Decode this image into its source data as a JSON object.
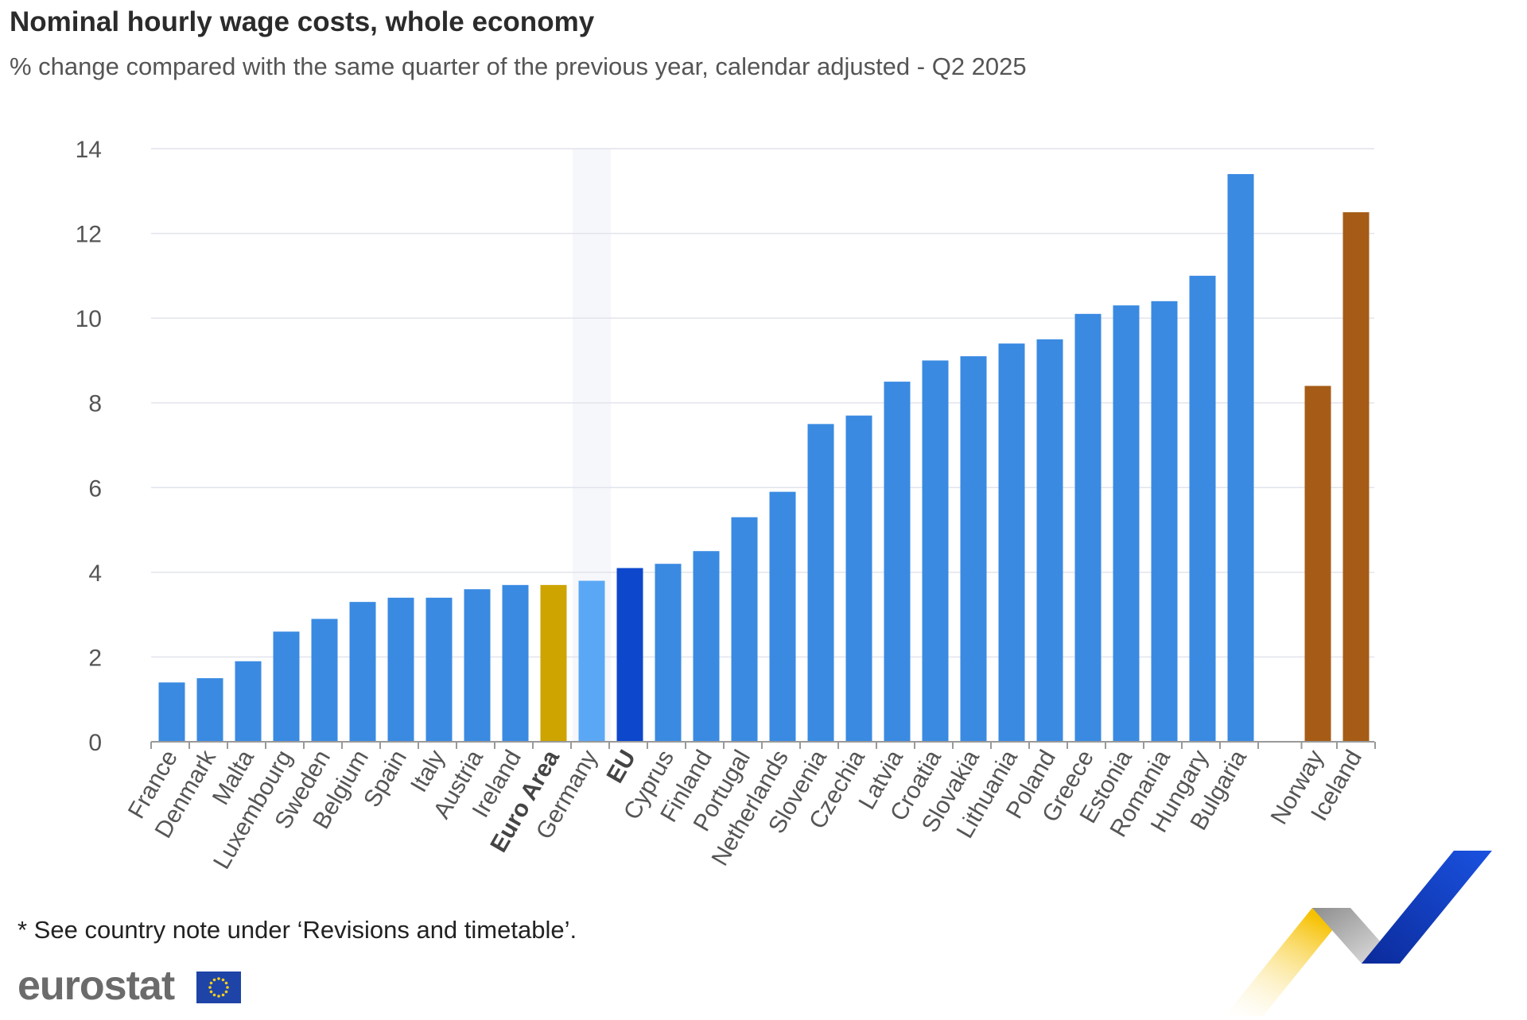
{
  "title": "Nominal hourly wage costs, whole economy",
  "subtitle": "% change compared with the same quarter of the previous year, calendar adjusted - Q2 2025",
  "footnote": "* See country note under ‘Revisions and timetable’.",
  "logo_text": "eurostat",
  "colors": {
    "country": "#3a8ae2",
    "euro_area": "#cda400",
    "germany": "#5aa8f5",
    "eu": "#0d47cc",
    "non_eu": "#a65c16",
    "grid": "#e2e4ec",
    "highlight_band": "#f6f7fb"
  },
  "chart_data": {
    "type": "bar",
    "ylim": [
      0,
      14
    ],
    "yticks": [
      0,
      2,
      4,
      6,
      8,
      10,
      12,
      14
    ],
    "grid": true,
    "categories": [
      "France",
      "Denmark",
      "Malta",
      "Luxembourg",
      "Sweden",
      "Belgium",
      "Spain",
      "Italy",
      "Austria",
      "Ireland",
      "Euro Area",
      "Germany",
      "EU",
      "Cyprus",
      "Finland",
      "Portugal",
      "Netherlands",
      "Slovenia",
      "Czechia",
      "Latvia",
      "Croatia",
      "Slovakia",
      "Lithuania",
      "Poland",
      "Greece",
      "Estonia",
      "Romania",
      "Hungary",
      "Bulgaria",
      "Norway",
      "Iceland"
    ],
    "values": [
      1.4,
      1.5,
      1.9,
      2.6,
      2.9,
      3.3,
      3.4,
      3.4,
      3.6,
      3.7,
      3.7,
      3.8,
      4.1,
      4.2,
      4.5,
      5.3,
      5.9,
      7.5,
      7.7,
      8.5,
      9.0,
      9.1,
      9.4,
      9.5,
      10.1,
      10.3,
      10.4,
      11.0,
      13.4,
      8.4,
      12.5
    ],
    "groups": [
      "country",
      "country",
      "country",
      "country",
      "country",
      "country",
      "country",
      "country",
      "country",
      "country",
      "euro_area",
      "germany",
      "eu",
      "country",
      "country",
      "country",
      "country",
      "country",
      "country",
      "country",
      "country",
      "country",
      "country",
      "country",
      "country",
      "country",
      "country",
      "country",
      "country",
      "non_eu",
      "non_eu"
    ],
    "bold_labels": [
      "Euro Area",
      "EU"
    ],
    "highlighted_category": "Germany"
  }
}
